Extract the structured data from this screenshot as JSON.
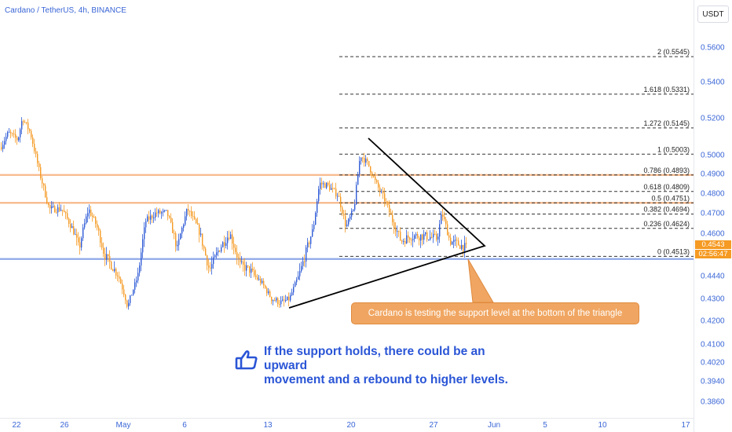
{
  "chart_data": {
    "type": "candlestick",
    "title": "Cardano / TetherUS, 4h, BINANCE",
    "currency": "USDT",
    "ylim": [
      0.38,
      0.57
    ],
    "y_ticks": [
      "0.5600",
      "0.5400",
      "0.5200",
      "0.5000",
      "0.4900",
      "0.4800",
      "0.4700",
      "0.4600",
      "0.4440",
      "0.4300",
      "0.4200",
      "0.4100",
      "0.4020",
      "0.3940",
      "0.3860"
    ],
    "x_ticks": [
      "22",
      "26",
      "May",
      "6",
      "13",
      "20",
      "27",
      "Jun",
      "5",
      "10",
      "17"
    ],
    "last_price": "0.4543",
    "countdown": "02:56:47",
    "fib_levels": [
      {
        "label": "2 (0.5545)",
        "value": 0.5545
      },
      {
        "label": "1.618 (0.5331)",
        "value": 0.5331
      },
      {
        "label": "1.272 (0.5145)",
        "value": 0.5145
      },
      {
        "label": "1 (0.5003)",
        "value": 0.5003
      },
      {
        "label": "0.786 (0.4893)",
        "value": 0.4893
      },
      {
        "label": "0.618 (0.4809)",
        "value": 0.4809
      },
      {
        "label": "0.5 (0.4751)",
        "value": 0.4751
      },
      {
        "label": "0.382 (0.4694)",
        "value": 0.4694
      },
      {
        "label": "0.236 (0.4624)",
        "value": 0.4624
      },
      {
        "label": "0 (0.4513)",
        "value": 0.4513
      }
    ],
    "horizontal_lines": [
      {
        "value": 0.4893,
        "color": "#f7b98b"
      },
      {
        "value": 0.4751,
        "color": "#f7b98b"
      },
      {
        "value": 0.4503,
        "color": "#8fa8e8"
      }
    ],
    "colors": {
      "up": "#2f5bd6",
      "down": "#f59a23",
      "triangle": "#000000"
    }
  },
  "annotations": {
    "callout": "Cardano is testing the support level at the bottom of the triangle",
    "note_line1": "If the support holds, there could be an upward",
    "note_line2": "movement and a rebound to higher levels."
  }
}
